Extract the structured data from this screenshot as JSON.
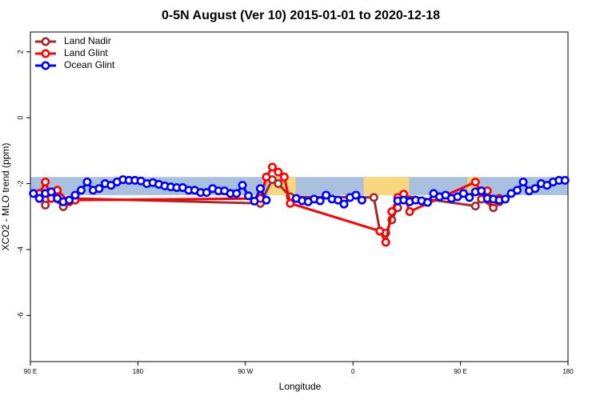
{
  "chart_data": {
    "type": "line",
    "title": "0-5N August (Ver 10)   2015-01-01 to 2020-12-18",
    "xlabel": "Longitude",
    "ylabel": "XCO2 - MLO trend (ppm)",
    "xlim": [
      90,
      540
    ],
    "xticks": [
      {
        "value": 90,
        "label": "90 E"
      },
      {
        "value": 180,
        "label": "180"
      },
      {
        "value": 270,
        "label": "90 W"
      },
      {
        "value": 360,
        "label": "0"
      },
      {
        "value": 450,
        "label": "90 E"
      },
      {
        "value": 540,
        "label": "180"
      }
    ],
    "ylim": [
      -7.4,
      2.6
    ],
    "yticks": [
      2,
      0,
      -2,
      -4,
      -6
    ],
    "legend": "top-left",
    "bands": {
      "y": [
        -2.35,
        -1.8
      ],
      "items": [
        {
          "color": "#a9c1df",
          "x": [
            90,
            540
          ]
        },
        {
          "color": "#f8d77e",
          "x": [
            289,
            312
          ]
        },
        {
          "color": "#f8d77e",
          "x": [
            369,
            407
          ]
        },
        {
          "color": "#f8d77e",
          "x": [
            456,
            466
          ]
        }
      ]
    },
    "series": [
      {
        "name": "Land Nadir",
        "color": "#a52a2a",
        "x": [
          97.5,
          102.5,
          107.5,
          117.5,
          122.5,
          127.5,
          282.5,
          292.5,
          297.5,
          307.5,
          377.5,
          382.5,
          387.5,
          392.5,
          397.5,
          402.5,
          462.5,
          467.5,
          477.5,
          482.5
        ],
        "values": [
          -2.3,
          -2.65,
          -2.4,
          -2.7,
          -2.55,
          -2.45,
          -2.6,
          -1.88,
          -2.0,
          -2.4,
          -2.42,
          -3.44,
          -3.5,
          -3.1,
          -2.73,
          -2.37,
          -2.68,
          -2.47,
          -2.73,
          -2.55
        ]
      },
      {
        "name": "Land Glint",
        "color": "#ff0000",
        "x": [
          97.5,
          102.5,
          107.5,
          112.5,
          122.5,
          127.5,
          282.5,
          287.5,
          292.5,
          297.5,
          302.5,
          307.5,
          382.5,
          387.5,
          392.5,
          397.5,
          402.5,
          407.5,
          462.5,
          467.5,
          472.5,
          477.5,
          482.5
        ],
        "values": [
          -2.3,
          -1.95,
          -2.45,
          -2.2,
          -2.55,
          -2.5,
          -2.45,
          -1.8,
          -1.5,
          -1.65,
          -1.8,
          -2.6,
          -3.44,
          -3.78,
          -2.85,
          -2.42,
          -2.32,
          -2.85,
          -1.95,
          -2.27,
          -2.22,
          -2.55,
          -2.45
        ]
      },
      {
        "name": "Ocean Glint",
        "color": "#0000ff",
        "x": [
          92.5,
          97.5,
          102.5,
          107.5,
          112.5,
          117.5,
          122.5,
          127.5,
          132.5,
          137.5,
          142.5,
          147.5,
          152.5,
          157.5,
          162.5,
          167.5,
          172.5,
          177.5,
          182.5,
          187.5,
          192.5,
          197.5,
          202.5,
          207.5,
          212.5,
          217.5,
          222.5,
          227.5,
          232.5,
          237.5,
          242.5,
          247.5,
          252.5,
          257.5,
          262.5,
          267.5,
          272.5,
          277.5,
          282.5,
          287.5,
          292.5,
          297.5,
          302.5,
          307.5,
          312.5,
          317.5,
          322.5,
          327.5,
          332.5,
          337.5,
          342.5,
          347.5,
          352.5,
          357.5,
          362.5,
          367.5,
          372.5,
          377.5,
          382.5,
          387.5,
          392.5,
          397.5,
          402.5,
          407.5,
          412.5,
          417.5,
          422.5,
          427.5,
          432.5,
          437.5,
          442.5,
          447.5,
          452.5,
          457.5,
          462.5,
          467.5,
          472.5,
          477.5,
          482.5,
          487.5,
          492.5,
          497.5,
          502.5,
          507.5,
          512.5,
          517.5,
          522.5,
          527.5,
          532.5,
          537.5
        ],
        "values": [
          -2.3,
          -2.45,
          -2.3,
          -2.25,
          -2.45,
          -2.55,
          -2.5,
          -2.35,
          -2.2,
          -1.95,
          -2.2,
          -2.15,
          -2.0,
          -2.05,
          -1.95,
          -1.88,
          -1.9,
          -1.9,
          -1.92,
          -2.0,
          -1.97,
          -2.02,
          -2.07,
          -2.1,
          -2.12,
          -2.12,
          -2.2,
          -2.2,
          -2.27,
          -2.27,
          -2.15,
          -2.22,
          -2.22,
          -2.3,
          -2.3,
          -2.05,
          -2.37,
          -2.53,
          -2.15,
          -2.5,
          null,
          null,
          null,
          null,
          -2.45,
          -2.52,
          -2.55,
          -2.47,
          -2.52,
          -2.35,
          -2.47,
          -2.5,
          -2.62,
          -2.42,
          -2.35,
          -2.5,
          null,
          null,
          null,
          null,
          null,
          -2.52,
          -2.5,
          -2.55,
          -2.5,
          -2.52,
          -2.57,
          -2.3,
          -2.4,
          -2.35,
          -2.45,
          -2.4,
          -2.3,
          -2.42,
          -2.25,
          -2.22,
          -2.45,
          -2.47,
          -2.5,
          -2.47,
          -2.3,
          -2.2,
          -1.95,
          -2.22,
          -2.15,
          -2.0,
          -2.05,
          -1.95,
          -1.9,
          -1.9
        ]
      }
    ]
  }
}
